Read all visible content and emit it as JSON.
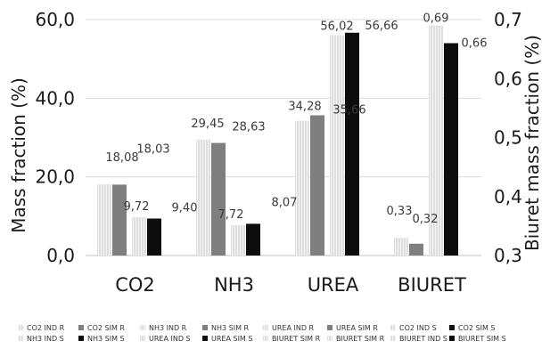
{
  "chart_data": {
    "type": "bar",
    "categories": [
      "CO2",
      "NH3",
      "UREA",
      "BIURET"
    ],
    "ylabel": "Mass fraction (%)",
    "y2label": "Biuret mass fraction (%)",
    "ylim": [
      0,
      60
    ],
    "yticks": [
      "0,0",
      "20,0",
      "40,0",
      "60,0"
    ],
    "y2lim": [
      0.3,
      0.7
    ],
    "y2ticks": [
      "0,3",
      "0,4",
      "0,5",
      "0,6",
      "0,7"
    ],
    "grid": "horizontal",
    "legend_position": "bottom",
    "series": [
      {
        "name": "CO2 IND R",
        "category": "CO2",
        "value": 18.08,
        "label": "18,08",
        "axis": "left",
        "color": "#ececec",
        "pattern": "vlines"
      },
      {
        "name": "CO2 SIM R",
        "category": "CO2",
        "value": 18.03,
        "label": "18,03",
        "axis": "left",
        "color": "#7f7f7f",
        "pattern": "solid"
      },
      {
        "name": "CO2 IND S",
        "category": "CO2",
        "value": 9.72,
        "label": "9,72",
        "axis": "left",
        "color": "#f2f2f2",
        "pattern": "vlines"
      },
      {
        "name": "CO2 SIM S",
        "category": "CO2",
        "value": 9.4,
        "label": "9,40",
        "axis": "left",
        "color": "#0d0d0d",
        "pattern": "solid"
      },
      {
        "name": "NH3 IND R",
        "category": "NH3",
        "value": 29.45,
        "label": "29,45",
        "axis": "left",
        "color": "#ececec",
        "pattern": "vlines"
      },
      {
        "name": "NH3 SIM R",
        "category": "NH3",
        "value": 28.63,
        "label": "28,63",
        "axis": "left",
        "color": "#7f7f7f",
        "pattern": "solid"
      },
      {
        "name": "NH3 IND S",
        "category": "NH3",
        "value": 7.72,
        "label": "7,72",
        "axis": "left",
        "color": "#f2f2f2",
        "pattern": "vlines"
      },
      {
        "name": "NH3 SIM S",
        "category": "NH3",
        "value": 8.07,
        "label": "8,07",
        "axis": "left",
        "color": "#0d0d0d",
        "pattern": "solid"
      },
      {
        "name": "UREA IND R",
        "category": "UREA",
        "value": 34.28,
        "label": "34,28",
        "axis": "left",
        "color": "#ececec",
        "pattern": "vlines"
      },
      {
        "name": "UREA SIM R",
        "category": "UREA",
        "value": 35.66,
        "label": "35,66",
        "axis": "left",
        "color": "#7f7f7f",
        "pattern": "solid"
      },
      {
        "name": "UREA IND S",
        "category": "UREA",
        "value": 56.02,
        "label": "56,02",
        "axis": "left",
        "color": "#f2f2f2",
        "pattern": "vlines"
      },
      {
        "name": "UREA SIM S",
        "category": "UREA",
        "value": 56.66,
        "label": "56,66",
        "axis": "left",
        "color": "#0d0d0d",
        "pattern": "solid"
      },
      {
        "name": "BIURET SIM R",
        "category": "BIURET",
        "value": 0.33,
        "label": "0,33",
        "axis": "right",
        "color": "#ececec",
        "pattern": "vlines"
      },
      {
        "name": "BIURET SIM R",
        "category": "BIURET",
        "value": 0.32,
        "label": "0,32",
        "axis": "right",
        "color": "#7f7f7f",
        "pattern": "solid"
      },
      {
        "name": "BIURET IND S",
        "category": "BIURET",
        "value": 0.69,
        "label": "0,69",
        "axis": "right",
        "color": "#f2f2f2",
        "pattern": "vlines"
      },
      {
        "name": "BIURET SIM S",
        "category": "BIURET",
        "value": 0.66,
        "label": "0,66",
        "axis": "right",
        "color": "#0d0d0d",
        "pattern": "solid"
      }
    ]
  },
  "legend": [
    [
      "CO2 IND R",
      "CO2 SIM R",
      "NH3 IND R",
      "NH3 SIM R",
      "UREA IND R",
      "UREA SIM R",
      "CO2 IND S",
      "CO2 SIM S"
    ],
    [
      "NH3 IND S",
      "NH3 SIM S",
      "UREA IND S",
      "UREA SIM S",
      "BIURET SIM R",
      "BIURET SIM R",
      "BIURET IND S",
      "BIURET SIM S"
    ]
  ]
}
